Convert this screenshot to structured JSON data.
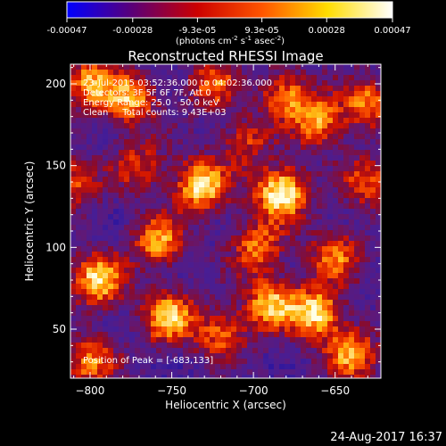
{
  "colorbar": {
    "ticks": [
      "-0.00047",
      "-0.00028",
      "-9.3e-05",
      "9.3e-05",
      "0.00028",
      "0.00047"
    ],
    "tick_values": [
      -0.00047,
      -0.00028,
      -9.3e-05,
      9.3e-05,
      0.00028,
      0.00047
    ],
    "units": "(photons cm",
    "units_exp1": "-2",
    "units_mid": " s",
    "units_exp2": "-1",
    "units_end": " asec",
    "units_exp3": "-2",
    "units_close": ")",
    "colors": [
      "#0000ff",
      "#5a0078",
      "#cc0000",
      "#ff5500",
      "#ffdd00",
      "#ffffff"
    ]
  },
  "chart_data": {
    "type": "heatmap",
    "title": "Reconstructed RHESSI Image",
    "xlabel": "Heliocentric X (arcsec)",
    "ylabel": "Heliocentric Y (arcsec)",
    "xlim": [
      -812,
      -622
    ],
    "ylim": [
      20,
      212
    ],
    "xticks": [
      -800,
      -750,
      -700,
      -650
    ],
    "yticks": [
      50,
      100,
      150,
      200
    ],
    "annotations": {
      "time": "23-Jul-2015 03:52:36.000 to 04:02:36.000",
      "detectors": "Detectors: 3F 5F 6F 7F, Att 0",
      "energy": "Energy Range: 25.0 - 50.0 keV",
      "clean": "Clean     Total counts: 9.43E+03",
      "peak": "Position of Peak = [-683,133]"
    },
    "peak": [
      -683,
      133
    ],
    "hotspots": [
      {
        "x": -683,
        "y": 133,
        "v": 1.0
      },
      {
        "x": -732,
        "y": 138,
        "v": 0.9
      },
      {
        "x": -795,
        "y": 80,
        "v": 0.85
      },
      {
        "x": -752,
        "y": 57,
        "v": 0.8
      },
      {
        "x": -775,
        "y": 190,
        "v": 0.7
      },
      {
        "x": -800,
        "y": 200,
        "v": 0.7
      },
      {
        "x": -758,
        "y": 104,
        "v": 0.7
      },
      {
        "x": -725,
        "y": 200,
        "v": 0.55
      },
      {
        "x": -680,
        "y": 193,
        "v": 0.6
      },
      {
        "x": -660,
        "y": 177,
        "v": 0.65
      },
      {
        "x": -630,
        "y": 188,
        "v": 0.6
      },
      {
        "x": -698,
        "y": 100,
        "v": 0.6
      },
      {
        "x": -650,
        "y": 95,
        "v": 0.6
      },
      {
        "x": -690,
        "y": 65,
        "v": 0.75
      },
      {
        "x": -662,
        "y": 60,
        "v": 0.85
      },
      {
        "x": -720,
        "y": 48,
        "v": 0.55
      },
      {
        "x": -800,
        "y": 30,
        "v": 0.6
      },
      {
        "x": -640,
        "y": 35,
        "v": 0.7
      },
      {
        "x": -810,
        "y": 140,
        "v": 0.5
      },
      {
        "x": -770,
        "y": 150,
        "v": 0.45
      },
      {
        "x": -705,
        "y": 165,
        "v": 0.45
      },
      {
        "x": -630,
        "y": 140,
        "v": 0.5
      }
    ]
  },
  "footer": {
    "date": "24-Aug-2017 16:37"
  }
}
